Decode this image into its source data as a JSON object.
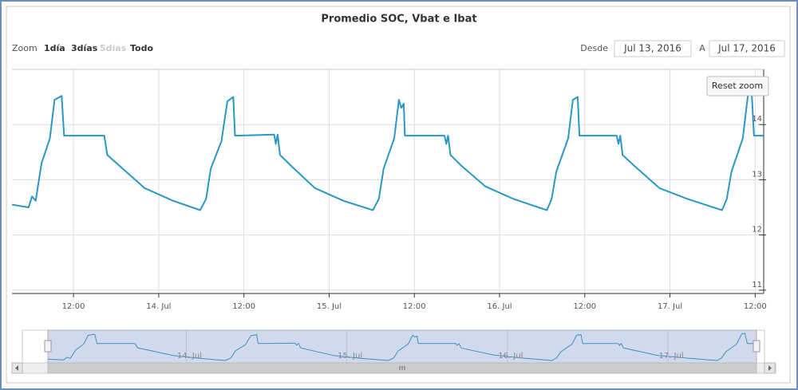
{
  "title": "Promedio SOC, Vbat e Ibat",
  "range_selector": {
    "label": "Zoom",
    "buttons": [
      "1día",
      "3días",
      "5días",
      "Todo"
    ]
  },
  "date_inputs": {
    "from_label": "Desde",
    "from": "Jul 13, 2016",
    "to_label": "A",
    "to": "Jul 17, 2016"
  },
  "reset_zoom": "Reset zoom",
  "chart_data": {
    "type": "line",
    "x": [
      "2016-07-13T03:20",
      "2016-07-13T05:40",
      "2016-07-13T06:10",
      "2016-07-13T06:40",
      "2016-07-13T07:30",
      "2016-07-13T08:40",
      "2016-07-13T09:20",
      "2016-07-13T10:20",
      "2016-07-13T10:40",
      "2016-07-13T16:20",
      "2016-07-13T16:45",
      "2016-07-13T18:30",
      "2016-07-13T22:00",
      "2016-07-14T02:00",
      "2016-07-14T05:50",
      "2016-07-14T06:40",
      "2016-07-14T07:20",
      "2016-07-14T08:50",
      "2016-07-14T09:40",
      "2016-07-14T10:30",
      "2016-07-14T10:45",
      "2016-07-14T16:15",
      "2016-07-14T16:30",
      "2016-07-14T16:45",
      "2016-07-14T17:05",
      "2016-07-14T18:40",
      "2016-07-14T22:00",
      "2016-07-15T02:00",
      "2016-07-15T06:10",
      "2016-07-15T07:00",
      "2016-07-15T07:40",
      "2016-07-15T09:10",
      "2016-07-15T09:50",
      "2016-07-15T10:10",
      "2016-07-15T10:30",
      "2016-07-15T10:40",
      "2016-07-15T16:15",
      "2016-07-15T16:30",
      "2016-07-15T16:45",
      "2016-07-15T17:05",
      "2016-07-15T18:40",
      "2016-07-15T22:00",
      "2016-07-16T02:00",
      "2016-07-16T06:40",
      "2016-07-16T07:20",
      "2016-07-16T08:00",
      "2016-07-16T09:40",
      "2016-07-16T10:20",
      "2016-07-16T11:00",
      "2016-07-16T11:15",
      "2016-07-16T16:30",
      "2016-07-16T16:45",
      "2016-07-16T17:00",
      "2016-07-16T17:20",
      "2016-07-16T19:00",
      "2016-07-16T22:30",
      "2016-07-17T02:30",
      "2016-07-17T07:20",
      "2016-07-17T08:00",
      "2016-07-17T08:40",
      "2016-07-17T10:15",
      "2016-07-17T11:00",
      "2016-07-17T11:30",
      "2016-07-17T11:50",
      "2016-07-17T13:10"
    ],
    "series": [
      {
        "color": "#2a97c4",
        "values": [
          12.55,
          12.5,
          12.7,
          12.62,
          13.3,
          13.75,
          14.45,
          14.52,
          13.8,
          13.8,
          13.45,
          13.25,
          12.85,
          12.62,
          12.45,
          12.65,
          13.2,
          13.7,
          14.42,
          14.5,
          13.8,
          13.82,
          13.65,
          13.82,
          13.45,
          13.25,
          12.85,
          12.62,
          12.45,
          12.65,
          13.2,
          13.75,
          14.45,
          14.3,
          14.38,
          13.8,
          13.8,
          13.65,
          13.8,
          13.45,
          13.25,
          12.88,
          12.65,
          12.45,
          12.65,
          13.15,
          13.75,
          14.45,
          14.5,
          13.8,
          13.8,
          13.65,
          13.8,
          13.45,
          13.25,
          12.85,
          12.65,
          12.45,
          12.65,
          13.15,
          13.75,
          14.55,
          14.6,
          13.8,
          13.8
        ]
      }
    ],
    "xlim": [
      "2016-07-13T03:20",
      "2016-07-17T13:12"
    ],
    "xticks": [
      {
        "value": "2016-07-13T12:00",
        "label": "12:00"
      },
      {
        "value": "2016-07-14T00:00",
        "label": "14. Jul"
      },
      {
        "value": "2016-07-14T12:00",
        "label": "12:00"
      },
      {
        "value": "2016-07-15T00:00",
        "label": "15. Jul"
      },
      {
        "value": "2016-07-15T12:00",
        "label": "12:00"
      },
      {
        "value": "2016-07-16T00:00",
        "label": "16. Jul"
      },
      {
        "value": "2016-07-16T12:00",
        "label": "12:00"
      },
      {
        "value": "2016-07-17T00:00",
        "label": "17. Jul"
      },
      {
        "value": "2016-07-17T12:00",
        "label": "12:00"
      }
    ],
    "ylim": [
      10.94,
      15
    ],
    "yticks": [
      11,
      12,
      13,
      14
    ],
    "grid": true,
    "navigator_xlim": [
      "2016-07-12T23:30",
      "2016-07-17T14:25"
    ],
    "navigator_xticks": [
      {
        "value": "2016-07-14T00:00",
        "label": "14. Jul"
      },
      {
        "value": "2016-07-15T00:00",
        "label": "15. Jul"
      },
      {
        "value": "2016-07-16T00:00",
        "label": "16. Jul"
      },
      {
        "value": "2016-07-17T00:00",
        "label": "17. Jul"
      }
    ]
  }
}
